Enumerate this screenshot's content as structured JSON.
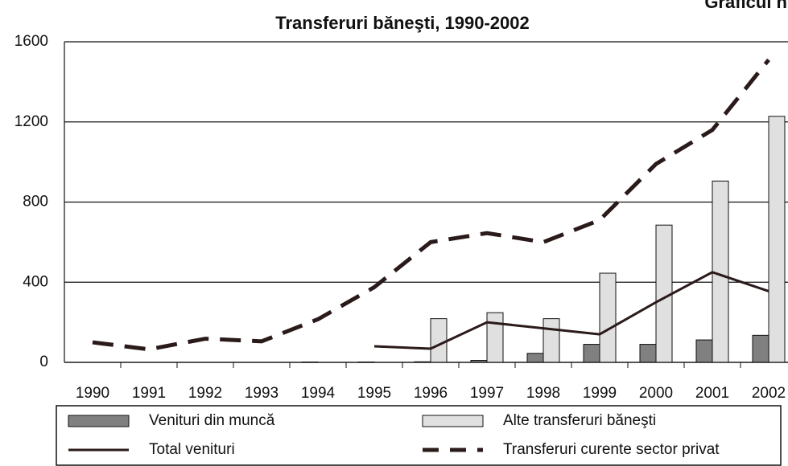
{
  "corner_note": "Graficul n",
  "chart_data": {
    "type": "bar_line",
    "title": "Transferuri băneşti, 1990-2002",
    "categories": [
      "1990",
      "1991",
      "1992",
      "1993",
      "1994",
      "1995",
      "1996",
      "1997",
      "1998",
      "1999",
      "2000",
      "2001",
      "2002"
    ],
    "series": [
      {
        "name": "Venituri din muncă",
        "kind": "bar",
        "color": "#808080",
        "values": [
          0,
          0,
          0,
          0,
          2,
          2,
          3,
          10,
          45,
          90,
          90,
          112,
          135
        ]
      },
      {
        "name": "Alte transferuri băneşti",
        "kind": "bar",
        "color": "#e0e0e0",
        "values": [
          0,
          0,
          0,
          0,
          0,
          0,
          218,
          248,
          218,
          445,
          685,
          905,
          1228
        ]
      },
      {
        "name": "Total venituri",
        "kind": "line",
        "dash": false,
        "color": "#2b1a1a",
        "values": [
          null,
          null,
          null,
          null,
          null,
          80,
          68,
          200,
          170,
          140,
          300,
          450,
          355
        ]
      },
      {
        "name": "Transferuri curente sector privat",
        "kind": "line",
        "dash": true,
        "color": "#2b1a1a",
        "values": [
          100,
          65,
          118,
          105,
          215,
          375,
          600,
          645,
          600,
          710,
          990,
          1160,
          1510
        ]
      }
    ],
    "ylim": [
      0,
      1600
    ],
    "yticks": [
      0,
      400,
      800,
      1200,
      1600
    ],
    "grid": true
  }
}
